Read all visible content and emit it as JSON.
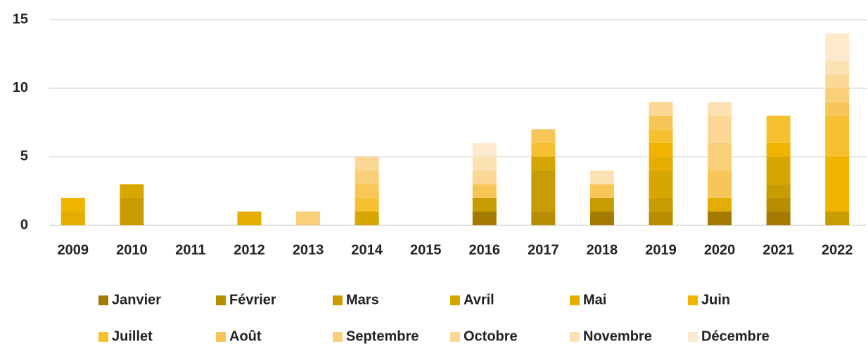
{
  "chart_data": {
    "type": "stacked_bar",
    "categories": [
      "2009",
      "2010",
      "2011",
      "2012",
      "2013",
      "2014",
      "2015",
      "2016",
      "2017",
      "2018",
      "2019",
      "2020",
      "2021",
      "2022"
    ],
    "series": [
      {
        "name": "Janvier",
        "color": "#a57a00",
        "values": [
          0,
          0,
          0,
          0,
          0,
          0,
          0,
          1,
          0,
          1,
          0,
          1,
          1,
          0
        ]
      },
      {
        "name": "Février",
        "color": "#b88d00",
        "values": [
          0,
          0,
          0,
          0,
          0,
          0,
          0,
          0,
          1,
          0,
          1,
          0,
          1,
          0
        ]
      },
      {
        "name": "Mars",
        "color": "#c89c00",
        "values": [
          0,
          2,
          0,
          0,
          0,
          0,
          0,
          1,
          3,
          1,
          1,
          0,
          1,
          1
        ]
      },
      {
        "name": "Avril",
        "color": "#d8a600",
        "values": [
          0,
          1,
          0,
          0,
          0,
          1,
          0,
          0,
          1,
          0,
          2,
          0,
          2,
          0
        ]
      },
      {
        "name": "Mai",
        "color": "#e5ad00",
        "values": [
          1,
          0,
          0,
          1,
          0,
          0,
          0,
          0,
          0,
          0,
          1,
          1,
          0,
          0
        ]
      },
      {
        "name": "Juin",
        "color": "#efb300",
        "values": [
          1,
          0,
          0,
          0,
          0,
          0,
          0,
          0,
          0,
          0,
          1,
          0,
          1,
          4
        ]
      },
      {
        "name": "Juillet",
        "color": "#f6c030",
        "values": [
          0,
          0,
          0,
          0,
          0,
          1,
          0,
          0,
          1,
          0,
          1,
          0,
          2,
          3
        ]
      },
      {
        "name": "Août",
        "color": "#f8c657",
        "values": [
          0,
          0,
          0,
          0,
          0,
          1,
          0,
          1,
          1,
          1,
          1,
          2,
          0,
          1
        ]
      },
      {
        "name": "Septembre",
        "color": "#f9cf78",
        "values": [
          0,
          0,
          0,
          0,
          1,
          1,
          0,
          0,
          0,
          0,
          0,
          2,
          0,
          1
        ]
      },
      {
        "name": "Octobre",
        "color": "#fbd896",
        "values": [
          0,
          0,
          0,
          0,
          0,
          1,
          0,
          1,
          0,
          0,
          1,
          2,
          0,
          1
        ]
      },
      {
        "name": "Novembre",
        "color": "#fce1b2",
        "values": [
          0,
          0,
          0,
          0,
          0,
          0,
          0,
          1,
          0,
          1,
          0,
          1,
          0,
          1
        ]
      },
      {
        "name": "Décembre",
        "color": "#fdeacd",
        "values": [
          0,
          0,
          0,
          0,
          0,
          0,
          0,
          1,
          0,
          0,
          0,
          0,
          0,
          2
        ]
      }
    ],
    "ylim": [
      0,
      15
    ],
    "yticks": [
      0,
      5,
      10,
      15
    ],
    "grid": true
  }
}
